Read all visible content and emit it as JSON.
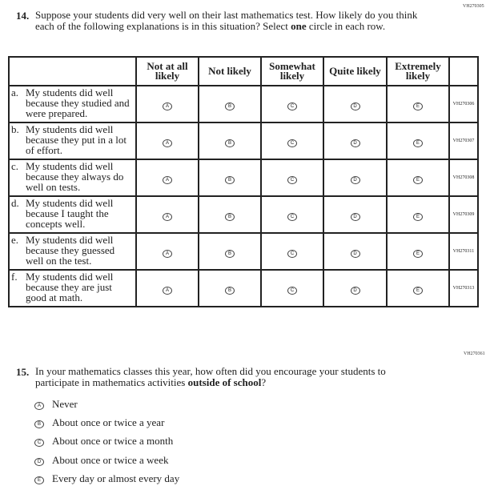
{
  "q14": {
    "code": "VH270305",
    "number": "14.",
    "text_before": "Suppose your students did very well on their last mathematics test. How likely do you think each of the following explanations is in this situation? Select ",
    "text_bold": "one",
    "text_after": " circle in each row.",
    "columns": [
      "Not at all likely",
      "Not likely",
      "Somewhat likely",
      "Quite likely",
      "Extremely likely"
    ],
    "bubbles": [
      "A",
      "B",
      "C",
      "D",
      "E"
    ],
    "rows": [
      {
        "letter": "a.",
        "text": "My students did well because they studied and were prepared.",
        "code": "VH270306"
      },
      {
        "letter": "b.",
        "text": "My students did well because they put in a lot of effort.",
        "code": "VH270307"
      },
      {
        "letter": "c.",
        "text": "My students did well because they always do well on tests.",
        "code": "VH270308"
      },
      {
        "letter": "d.",
        "text": "My students did well because I taught the concepts well.",
        "code": "VH270309"
      },
      {
        "letter": "e.",
        "text": "My students did well because they guessed well on the test.",
        "code": "VH270311"
      },
      {
        "letter": "f.",
        "text": "My students did well because they are just good at math.",
        "code": "VH270313"
      }
    ]
  },
  "q15": {
    "code": "VH270361",
    "number": "15.",
    "text_before": "In your mathematics classes this year, how often did you encourage your students to participate in mathematics activities ",
    "text_bold": "outside of school",
    "text_after": "?",
    "options": [
      {
        "bubble": "A",
        "label": "Never"
      },
      {
        "bubble": "B",
        "label": "About once or twice a year"
      },
      {
        "bubble": "C",
        "label": "About once or twice a month"
      },
      {
        "bubble": "D",
        "label": "About once or twice a week"
      },
      {
        "bubble": "E",
        "label": "Every day or almost every day"
      }
    ]
  }
}
